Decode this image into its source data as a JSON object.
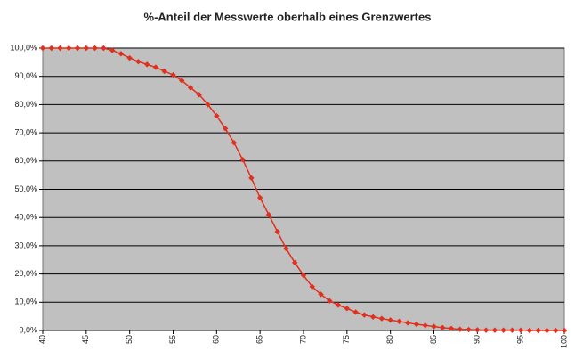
{
  "chart_data": {
    "type": "line",
    "title": "%-Anteil der Messwerte oberhalb eines Grenzwertes",
    "x": [
      40,
      41,
      42,
      43,
      44,
      45,
      46,
      47,
      48,
      49,
      50,
      51,
      52,
      53,
      54,
      55,
      56,
      57,
      58,
      59,
      60,
      61,
      62,
      63,
      64,
      65,
      66,
      67,
      68,
      69,
      70,
      71,
      72,
      73,
      74,
      75,
      76,
      77,
      78,
      79,
      80,
      81,
      82,
      83,
      84,
      85,
      86,
      87,
      88,
      89,
      90,
      91,
      92,
      93,
      94,
      95,
      96,
      97,
      98,
      99,
      100
    ],
    "series": [
      {
        "color": "#e0301e",
        "values": [
          100,
          100,
          100,
          100,
          100,
          100,
          100,
          100,
          99.2,
          98,
          96.5,
          95.2,
          94.2,
          93.2,
          91.8,
          90.5,
          88.5,
          86,
          83.5,
          80,
          76,
          71.5,
          66.5,
          60.5,
          54,
          47,
          41,
          35,
          29,
          24,
          19.5,
          15.5,
          12.8,
          10.5,
          9,
          7.8,
          6.5,
          5.5,
          4.8,
          4.2,
          3.7,
          3.2,
          2.7,
          2.2,
          1.8,
          1.4,
          1,
          0.7,
          0.4,
          0.3,
          0.2,
          0.1,
          0.1,
          0.1,
          0.1,
          0.1,
          0,
          0,
          0,
          0,
          0
        ]
      }
    ],
    "xlim": [
      40,
      100
    ],
    "xticks": [
      40,
      45,
      50,
      55,
      60,
      65,
      70,
      75,
      80,
      85,
      90,
      95,
      100
    ],
    "ylim": [
      0,
      100
    ],
    "yticks": [
      {
        "value": 0,
        "label": "0,0%"
      },
      {
        "value": 10,
        "label": "10,0%"
      },
      {
        "value": 20,
        "label": "20,0%"
      },
      {
        "value": 30,
        "label": "30,0%"
      },
      {
        "value": 40,
        "label": "40,0%"
      },
      {
        "value": 50,
        "label": "50,0%"
      },
      {
        "value": 60,
        "label": "60,0%"
      },
      {
        "value": 70,
        "label": "70,0%"
      },
      {
        "value": 80,
        "label": "80,0%"
      },
      {
        "value": 90,
        "label": "90,0%"
      },
      {
        "value": 100,
        "label": "100,0%"
      }
    ],
    "grid": true
  }
}
